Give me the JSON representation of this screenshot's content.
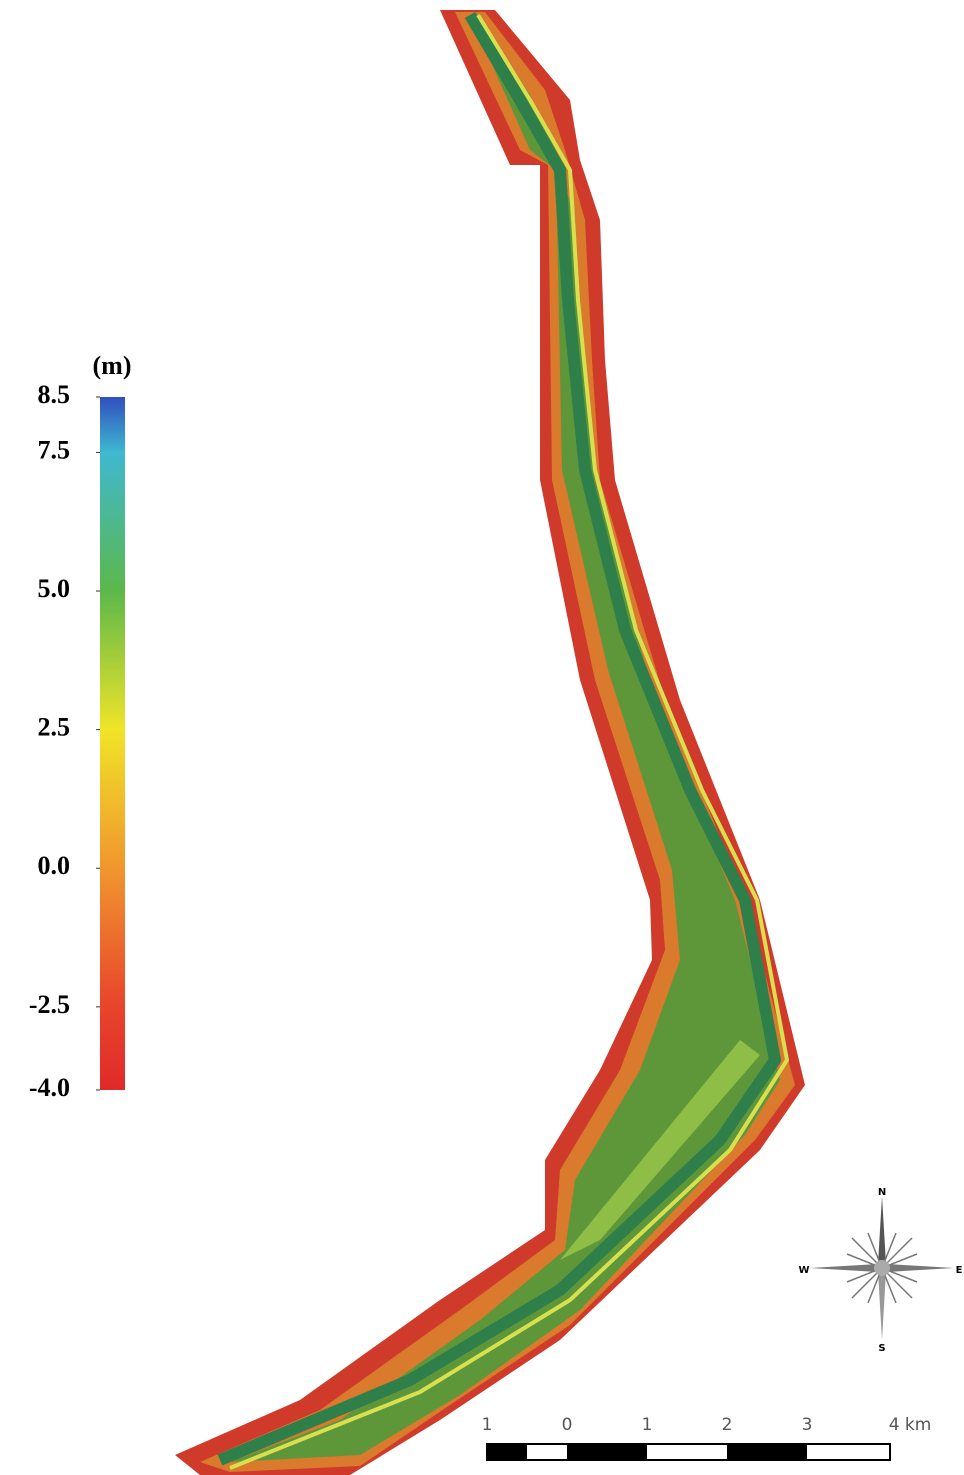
{
  "legend": {
    "unit": "(m)",
    "range": [
      -4,
      8.5
    ],
    "ticks": [
      8.5,
      7.5,
      {
        "value": 5,
        "label": "5.0"
      },
      2.5,
      {
        "value": 0,
        "label": "0.0"
      },
      -2.5,
      {
        "value": -4,
        "label": "-4.0"
      }
    ],
    "colors": [
      "#2f4fbf",
      "#3fb8d0",
      "#5cb84a",
      "#f0e428",
      "#f0962e",
      "#e8442c",
      "#e02a2a"
    ]
  },
  "compass": {
    "north": "N",
    "east": "E",
    "south": "S",
    "west": "W"
  },
  "scale_bar": {
    "labels": [
      "1",
      "0",
      "1",
      "2",
      "3",
      "4 km"
    ]
  }
}
